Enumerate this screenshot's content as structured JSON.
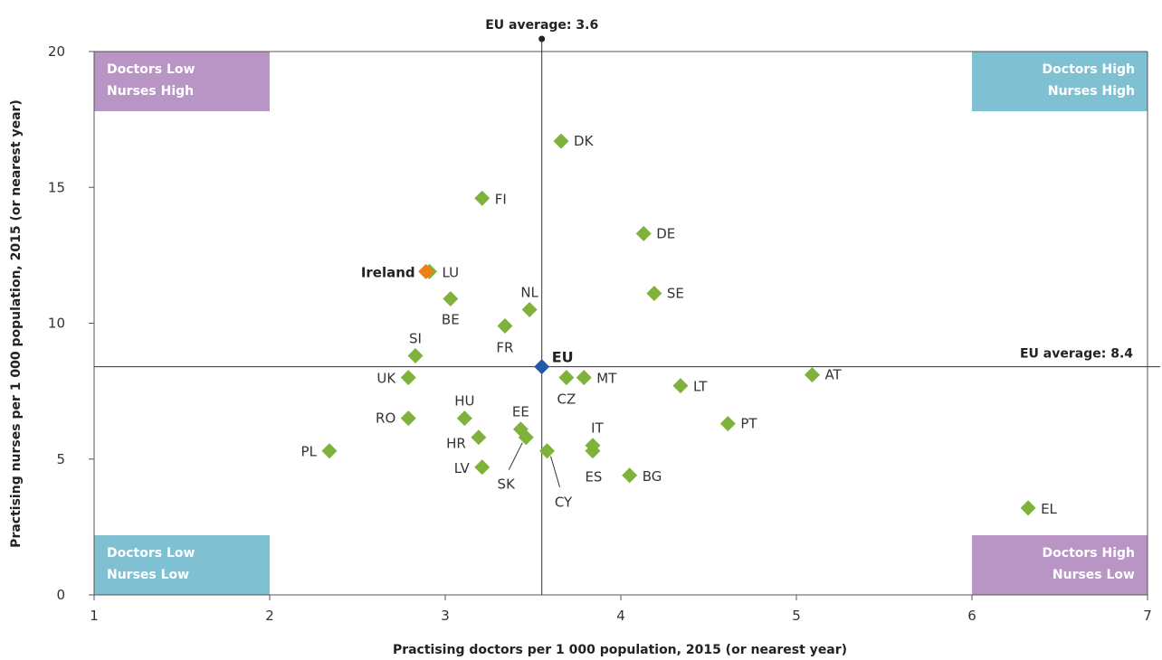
{
  "chart_data": {
    "type": "scatter",
    "xlabel": "Practising doctors per 1 000 population, 2015 (or nearest year)",
    "ylabel": "Practising nurses per 1 000 population, 2015 (or nearest year)",
    "xlim": [
      1,
      7
    ],
    "ylim": [
      0,
      20
    ],
    "x_ticks": [
      "1",
      "2",
      "3",
      "4",
      "5",
      "6",
      "7"
    ],
    "y_ticks": [
      "0",
      "5",
      "10",
      "15",
      "20"
    ],
    "grid": false,
    "eu_average_doctors_label": "EU average: 3.6",
    "eu_average_nurses_label": "EU average: 8.4",
    "eu_average_doctors": 3.55,
    "eu_average_nurses": 8.4,
    "quadrants": [
      {
        "line1": "Doctors Low",
        "line2": "Nurses High",
        "position": "top-left",
        "color": "#b895c4"
      },
      {
        "line1": "Doctors High",
        "line2": "Nurses High",
        "position": "top-right",
        "color": "#7fc1d3"
      },
      {
        "line1": "Doctors Low",
        "line2": "Nurses Low",
        "position": "bottom-left",
        "color": "#7fc1d3"
      },
      {
        "line1": "Doctors High",
        "line2": "Nurses Low",
        "position": "bottom-right",
        "color": "#b895c4"
      }
    ],
    "colors": {
      "country": "#7fb23a",
      "ireland": "#ef7d1a",
      "eu": "#1f5ba8",
      "axis": "#555555"
    },
    "points": [
      {
        "label": "DK",
        "x": 3.66,
        "y": 16.7,
        "type": "country"
      },
      {
        "label": "FI",
        "x": 3.21,
        "y": 14.6,
        "type": "country"
      },
      {
        "label": "DE",
        "x": 4.13,
        "y": 13.3,
        "type": "country"
      },
      {
        "label": "LU",
        "x": 2.91,
        "y": 11.9,
        "type": "country"
      },
      {
        "label": "Ireland",
        "x": 2.89,
        "y": 11.9,
        "type": "ireland"
      },
      {
        "label": "SE",
        "x": 4.19,
        "y": 11.1,
        "type": "country"
      },
      {
        "label": "BE",
        "x": 3.03,
        "y": 10.9,
        "type": "country"
      },
      {
        "label": "NL",
        "x": 3.48,
        "y": 10.5,
        "type": "country"
      },
      {
        "label": "FR",
        "x": 3.34,
        "y": 9.9,
        "type": "country"
      },
      {
        "label": "SI",
        "x": 2.83,
        "y": 8.8,
        "type": "country"
      },
      {
        "label": "EU",
        "x": 3.55,
        "y": 8.4,
        "type": "eu"
      },
      {
        "label": "UK",
        "x": 2.79,
        "y": 8.0,
        "type": "country"
      },
      {
        "label": "CZ",
        "x": 3.69,
        "y": 8.0,
        "type": "country"
      },
      {
        "label": "MT",
        "x": 3.79,
        "y": 8.0,
        "type": "country"
      },
      {
        "label": "AT",
        "x": 5.09,
        "y": 8.1,
        "type": "country"
      },
      {
        "label": "LT",
        "x": 4.34,
        "y": 7.7,
        "type": "country"
      },
      {
        "label": "RO",
        "x": 2.79,
        "y": 6.5,
        "type": "country"
      },
      {
        "label": "HU",
        "x": 3.11,
        "y": 6.5,
        "type": "country"
      },
      {
        "label": "PT",
        "x": 4.61,
        "y": 6.3,
        "type": "country"
      },
      {
        "label": "EE",
        "x": 3.43,
        "y": 6.1,
        "type": "country"
      },
      {
        "label": "HR",
        "x": 3.19,
        "y": 5.8,
        "type": "country"
      },
      {
        "label": "SK",
        "x": 3.46,
        "y": 5.8,
        "type": "country"
      },
      {
        "label": "IT",
        "x": 3.84,
        "y": 5.5,
        "type": "country"
      },
      {
        "label": "ES",
        "x": 3.84,
        "y": 5.3,
        "type": "country"
      },
      {
        "label": "CY",
        "x": 3.58,
        "y": 5.3,
        "type": "country"
      },
      {
        "label": "PL",
        "x": 2.34,
        "y": 5.3,
        "type": "country"
      },
      {
        "label": "LV",
        "x": 3.21,
        "y": 4.7,
        "type": "country"
      },
      {
        "label": "BG",
        "x": 4.05,
        "y": 4.4,
        "type": "country"
      },
      {
        "label": "EL",
        "x": 6.32,
        "y": 3.2,
        "type": "country"
      }
    ]
  }
}
